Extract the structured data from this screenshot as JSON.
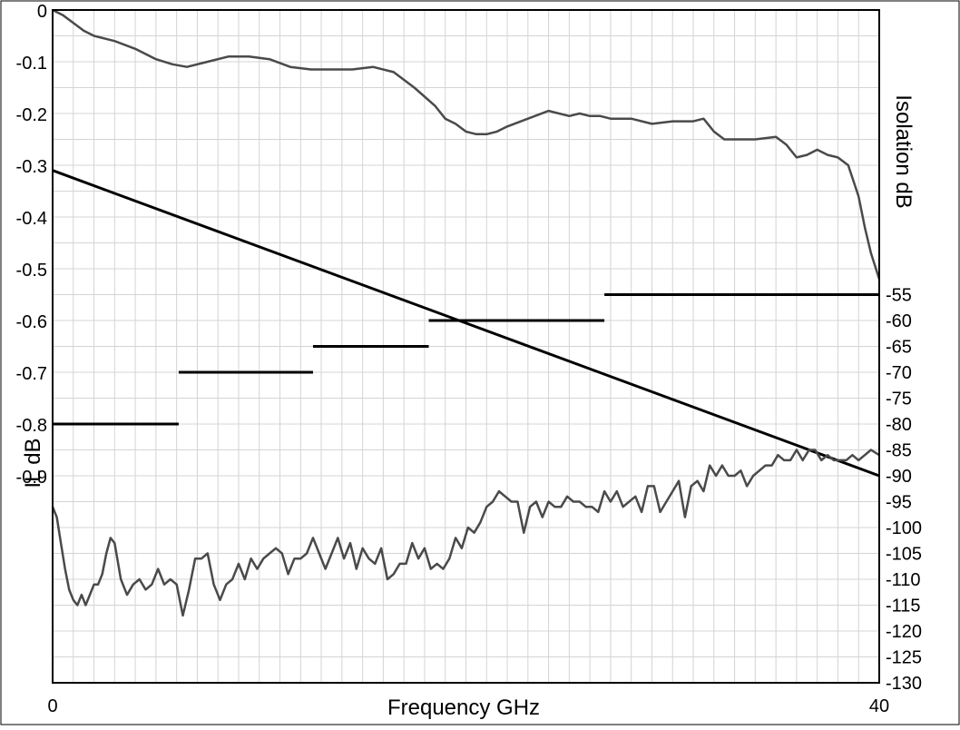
{
  "chart_data": {
    "type": "line",
    "xlabel": "Frequency GHz",
    "ylabel_left": "IL dB",
    "ylabel_right": "Isolation dB",
    "xlim": [
      0,
      40
    ],
    "x_ticks": [
      "0",
      "40"
    ],
    "grid": true,
    "left_axis": {
      "ylim": [
        -1.3,
        0
      ],
      "tick_values": [
        0,
        -0.1,
        -0.2,
        -0.3,
        -0.4,
        -0.5,
        -0.6,
        -0.7,
        -0.8,
        -0.9
      ],
      "tick_labels": [
        "0",
        "-0.1",
        "-0.2",
        "-0.3",
        "-0.4",
        "-0.5",
        "-0.6",
        "-0.7",
        "-0.8",
        "-0.9"
      ]
    },
    "right_axis": {
      "ylim": [
        -130,
        0
      ],
      "tick_values": [
        -55,
        -60,
        -65,
        -70,
        -75,
        -80,
        -85,
        -90,
        -95,
        -100,
        -105,
        -110,
        -115,
        -120,
        -125,
        -130
      ],
      "tick_labels": [
        "-55",
        "-60",
        "-65",
        "-70",
        "-75",
        "-80",
        "-85",
        "-90",
        "-95",
        "-100",
        "-105",
        "-110",
        "-115",
        "-120",
        "-125",
        "-130"
      ]
    },
    "series": [
      {
        "axis": "left",
        "style": "measured",
        "color": "#4a4a4a",
        "x": [
          0,
          0.5,
          1,
          1.5,
          2,
          3,
          4,
          5,
          5.8,
          6.5,
          7.5,
          8.5,
          9.5,
          10.5,
          11.5,
          12.5,
          13.5,
          14.5,
          15.5,
          16.5,
          17.5,
          18.5,
          19,
          19.5,
          20,
          20.5,
          21,
          21.5,
          22,
          23,
          24,
          25,
          25.5,
          26,
          26.5,
          27,
          28,
          29,
          30,
          31,
          31.5,
          32,
          32.5,
          33,
          34,
          35,
          35.5,
          36,
          36.5,
          37,
          37.5,
          38,
          38.5,
          39,
          39.3,
          39.6,
          40
        ],
        "y": [
          0,
          -0.01,
          -0.025,
          -0.04,
          -0.05,
          -0.06,
          -0.075,
          -0.095,
          -0.105,
          -0.11,
          -0.1,
          -0.09,
          -0.09,
          -0.095,
          -0.11,
          -0.115,
          -0.115,
          -0.115,
          -0.11,
          -0.12,
          -0.15,
          -0.185,
          -0.21,
          -0.22,
          -0.235,
          -0.24,
          -0.24,
          -0.235,
          -0.225,
          -0.21,
          -0.195,
          -0.205,
          -0.2,
          -0.205,
          -0.205,
          -0.21,
          -0.21,
          -0.22,
          -0.215,
          -0.215,
          -0.21,
          -0.235,
          -0.25,
          -0.25,
          -0.25,
          -0.245,
          -0.26,
          -0.285,
          -0.28,
          -0.27,
          -0.28,
          -0.285,
          -0.3,
          -0.36,
          -0.42,
          -0.47,
          -0.52
        ]
      },
      {
        "axis": "left",
        "style": "spec",
        "color": "#000000",
        "x": [
          0,
          40
        ],
        "y": [
          -0.31,
          -0.9
        ]
      },
      {
        "axis": "right",
        "style": "spec-steps",
        "color": "#000000",
        "segments": [
          {
            "x0": 0,
            "x1": 6.1,
            "y": -80
          },
          {
            "x0": 6.1,
            "x1": 12.6,
            "y": -70
          },
          {
            "x0": 12.6,
            "x1": 18.2,
            "y": -65
          },
          {
            "x0": 18.2,
            "x1": 26.7,
            "y": -60
          },
          {
            "x0": 26.7,
            "x1": 40,
            "y": -55
          }
        ]
      },
      {
        "axis": "right",
        "style": "measured",
        "color": "#4a4a4a",
        "x": [
          0,
          0.2,
          0.4,
          0.6,
          0.8,
          1.0,
          1.2,
          1.4,
          1.6,
          1.8,
          2.0,
          2.2,
          2.4,
          2.6,
          2.8,
          3.0,
          3.3,
          3.6,
          3.9,
          4.2,
          4.5,
          4.8,
          5.1,
          5.4,
          5.7,
          6.0,
          6.3,
          6.6,
          6.9,
          7.2,
          7.5,
          7.8,
          8.1,
          8.4,
          8.7,
          9.0,
          9.3,
          9.6,
          9.9,
          10.2,
          10.5,
          10.8,
          11.1,
          11.4,
          11.7,
          12.0,
          12.3,
          12.6,
          12.9,
          13.2,
          13.5,
          13.8,
          14.1,
          14.4,
          14.7,
          15.0,
          15.3,
          15.6,
          15.9,
          16.2,
          16.5,
          16.8,
          17.1,
          17.4,
          17.7,
          18.0,
          18.3,
          18.6,
          18.9,
          19.2,
          19.5,
          19.8,
          20.1,
          20.4,
          20.7,
          21.0,
          21.3,
          21.6,
          21.9,
          22.2,
          22.5,
          22.8,
          23.1,
          23.4,
          23.7,
          24.0,
          24.3,
          24.6,
          24.9,
          25.2,
          25.5,
          25.8,
          26.1,
          26.4,
          26.7,
          27.0,
          27.3,
          27.6,
          27.9,
          28.2,
          28.5,
          28.8,
          29.1,
          29.4,
          29.7,
          30.0,
          30.3,
          30.6,
          30.9,
          31.2,
          31.5,
          31.8,
          32.1,
          32.4,
          32.7,
          33.0,
          33.3,
          33.6,
          33.9,
          34.2,
          34.5,
          34.8,
          35.1,
          35.4,
          35.7,
          36.0,
          36.3,
          36.6,
          36.9,
          37.2,
          37.5,
          37.8,
          38.1,
          38.4,
          38.7,
          39.0,
          39.3,
          39.6,
          40.0
        ],
        "y": [
          -96,
          -98,
          -103,
          -108,
          -112,
          -114,
          -115,
          -113,
          -115,
          -113,
          -111,
          -111,
          -109,
          -105,
          -102,
          -103,
          -110,
          -113,
          -111,
          -110,
          -112,
          -111,
          -108,
          -111,
          -110,
          -111,
          -117,
          -112,
          -106,
          -106,
          -105,
          -111,
          -114,
          -111,
          -110,
          -107,
          -110,
          -106,
          -108,
          -106,
          -105,
          -104,
          -105,
          -109,
          -106,
          -106,
          -105,
          -102,
          -105,
          -108,
          -105,
          -102,
          -106,
          -103,
          -108,
          -104,
          -106,
          -107,
          -104,
          -110,
          -109,
          -107,
          -107,
          -103,
          -106,
          -104,
          -108,
          -107,
          -108,
          -106,
          -102,
          -104,
          -100,
          -101,
          -99,
          -96,
          -95,
          -93,
          -94,
          -95,
          -95,
          -101,
          -96,
          -95,
          -98,
          -95,
          -96,
          -96,
          -94,
          -95,
          -95,
          -96,
          -96,
          -97,
          -93,
          -95,
          -93,
          -96,
          -95,
          -94,
          -97,
          -92,
          -92,
          -97,
          -95,
          -93,
          -91,
          -98,
          -92,
          -91,
          -93,
          -88,
          -90,
          -88,
          -90,
          -90,
          -89,
          -92,
          -90,
          -89,
          -88,
          -88,
          -86,
          -87,
          -87,
          -85,
          -87,
          -85,
          -85,
          -87,
          -86,
          -87,
          -87,
          -87,
          -86,
          -87,
          -86,
          -85,
          -86
        ]
      }
    ]
  }
}
